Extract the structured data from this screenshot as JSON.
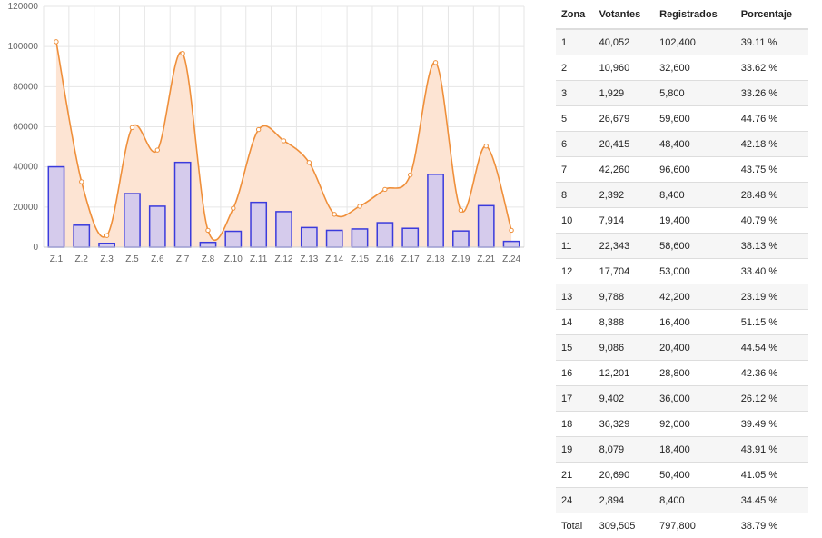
{
  "colors": {
    "bar_fill": "#d5cbec",
    "bar_stroke": "#3b3bdc",
    "line": "#ef8f3a",
    "area": "#fde4d3",
    "grid": "#e6e6e6"
  },
  "chart_data": {
    "type": "bar",
    "categories": [
      "Z.1",
      "Z.2",
      "Z.3",
      "Z.5",
      "Z.6",
      "Z.7",
      "Z.8",
      "Z.10",
      "Z.11",
      "Z.12",
      "Z.13",
      "Z.14",
      "Z.15",
      "Z.16",
      "Z.17",
      "Z.18",
      "Z.19",
      "Z.21",
      "Z.24"
    ],
    "series": [
      {
        "type": "bar",
        "values": [
          40052,
          10960,
          1929,
          26679,
          20415,
          42260,
          2392,
          7914,
          22343,
          17704,
          9788,
          8388,
          9086,
          12201,
          9402,
          36329,
          8079,
          20690,
          2894
        ]
      },
      {
        "type": "area",
        "values": [
          102400,
          32600,
          5800,
          59600,
          48400,
          96600,
          8400,
          19400,
          58600,
          53000,
          42200,
          16400,
          20400,
          28800,
          36000,
          92000,
          18400,
          50400,
          8400
        ]
      }
    ],
    "yticks": [
      "0",
      "20000",
      "40000",
      "60000",
      "80000",
      "100000",
      "120000"
    ],
    "ylim": [
      0,
      120000
    ],
    "grid": true
  },
  "table": {
    "headers": [
      "Zona",
      "Votantes",
      "Registrados",
      "Porcentaje"
    ],
    "rows": [
      [
        "1",
        "40,052",
        "102,400",
        "39.11 %"
      ],
      [
        "2",
        "10,960",
        "32,600",
        "33.62 %"
      ],
      [
        "3",
        "1,929",
        "5,800",
        "33.26 %"
      ],
      [
        "5",
        "26,679",
        "59,600",
        "44.76 %"
      ],
      [
        "6",
        "20,415",
        "48,400",
        "42.18 %"
      ],
      [
        "7",
        "42,260",
        "96,600",
        "43.75 %"
      ],
      [
        "8",
        "2,392",
        "8,400",
        "28.48 %"
      ],
      [
        "10",
        "7,914",
        "19,400",
        "40.79 %"
      ],
      [
        "11",
        "22,343",
        "58,600",
        "38.13 %"
      ],
      [
        "12",
        "17,704",
        "53,000",
        "33.40 %"
      ],
      [
        "13",
        "9,788",
        "42,200",
        "23.19 %"
      ],
      [
        "14",
        "8,388",
        "16,400",
        "51.15 %"
      ],
      [
        "15",
        "9,086",
        "20,400",
        "44.54 %"
      ],
      [
        "16",
        "12,201",
        "28,800",
        "42.36 %"
      ],
      [
        "17",
        "9,402",
        "36,000",
        "26.12 %"
      ],
      [
        "18",
        "36,329",
        "92,000",
        "39.49 %"
      ],
      [
        "19",
        "8,079",
        "18,400",
        "43.91 %"
      ],
      [
        "21",
        "20,690",
        "50,400",
        "41.05 %"
      ],
      [
        "24",
        "2,894",
        "8,400",
        "34.45 %"
      ]
    ],
    "total": [
      "Total",
      "309,505",
      "797,800",
      "38.79 %"
    ]
  }
}
